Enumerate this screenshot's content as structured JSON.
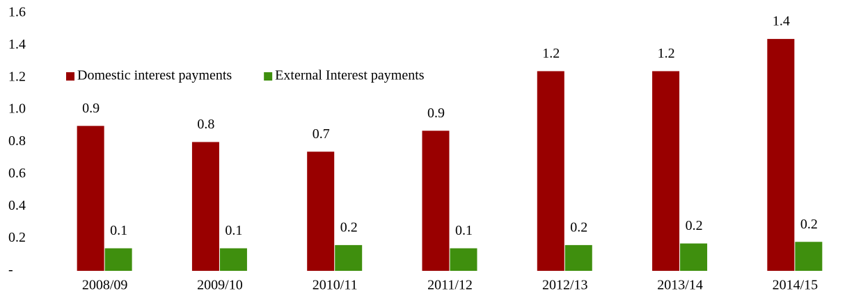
{
  "chart_data": {
    "type": "bar",
    "categories": [
      "2008/09",
      "2009/10",
      "2010/11",
      "2011/12",
      "2012/13",
      "2013/14",
      "2014/15"
    ],
    "series": [
      {
        "name": "Domestic interest payments",
        "color": "#990000",
        "values": [
          0.9,
          0.8,
          0.74,
          0.87,
          1.24,
          1.24,
          1.44
        ],
        "value_labels": [
          "0.9",
          "0.8",
          "0.7",
          "0.9",
          "1.2",
          "1.2",
          "1.4"
        ]
      },
      {
        "name": "External Interest payments",
        "color": "#3f8f0e",
        "values": [
          0.14,
          0.14,
          0.16,
          0.14,
          0.16,
          0.17,
          0.18
        ],
        "value_labels": [
          "0.1",
          "0.1",
          "0.2",
          "0.1",
          "0.2",
          "0.2",
          "0.2"
        ]
      }
    ],
    "ylim": [
      0,
      1.6
    ],
    "yticks": [
      {
        "value": 0,
        "label": "-"
      },
      0.2,
      0.4,
      0.6,
      0.8,
      {
        "value": 1,
        "label": "1.0"
      },
      1.2,
      1.4,
      1.6
    ],
    "grid": false,
    "legend": "upper left"
  }
}
